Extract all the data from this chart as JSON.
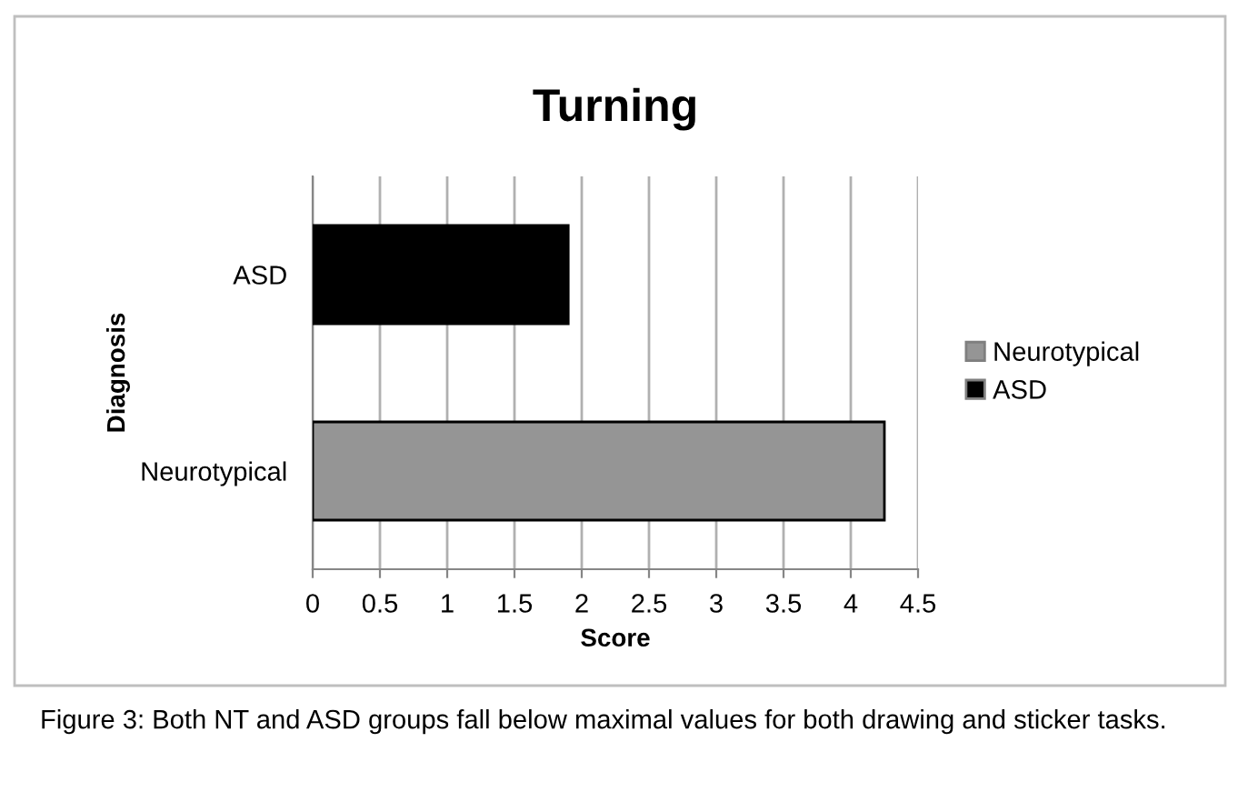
{
  "chart_data": {
    "type": "bar",
    "orientation": "horizontal",
    "title": "Turning",
    "xlabel": "Score",
    "ylabel": "Diagnosis",
    "categories": [
      "ASD",
      "Neurotypical"
    ],
    "series": [
      {
        "name": "Neurotypical",
        "color": "#959595",
        "values": [
          null,
          4.25
        ]
      },
      {
        "name": "ASD",
        "color": "#000000",
        "values": [
          1.9,
          null
        ]
      }
    ],
    "xlim": [
      0,
      4.5
    ],
    "xticks": [
      0,
      0.5,
      1,
      1.5,
      2,
      2.5,
      3,
      3.5,
      4,
      4.5
    ],
    "grid": "x",
    "legend": "right",
    "annotations": [
      "Figure 3: Both NT and ASD groups fall below maximal values for both drawing and sticker tasks."
    ]
  }
}
